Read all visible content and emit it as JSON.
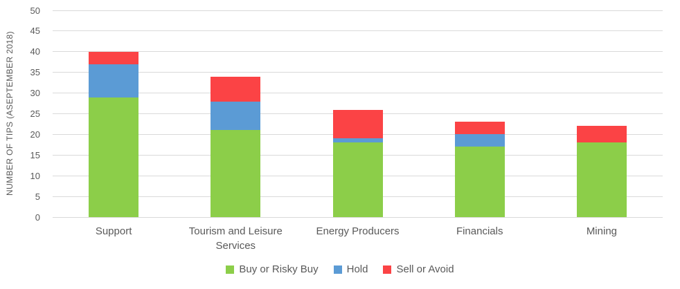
{
  "chart_data": {
    "type": "bar",
    "stacked": true,
    "title": "",
    "xlabel": "",
    "ylabel": "NUMBER OF TIPS (ASEPTEMBER 2018)",
    "categories": [
      "Support",
      "Tourism and Leisure Services",
      "Energy Producers",
      "Financials",
      "Mining"
    ],
    "series": [
      {
        "name": "Buy or Risky Buy",
        "color": "#8CCE49",
        "values": [
          29,
          21,
          18,
          17,
          18
        ]
      },
      {
        "name": "Hold",
        "color": "#5B9BD5",
        "values": [
          8,
          7,
          1,
          3,
          0
        ]
      },
      {
        "name": "Sell or Avoid",
        "color": "#FB4345",
        "values": [
          3,
          6,
          7,
          3,
          4
        ]
      }
    ],
    "stack_totals": [
      40,
      34,
      26,
      23,
      22
    ],
    "ylim": [
      0,
      50
    ],
    "ytick_step": 5,
    "yticks": [
      0,
      5,
      10,
      15,
      20,
      25,
      30,
      35,
      40,
      45,
      50
    ],
    "grid": true,
    "legend_position": "bottom",
    "gridline_color": "#D9D9D9",
    "text_color": "#595959",
    "background_color": "#FFFFFF"
  }
}
